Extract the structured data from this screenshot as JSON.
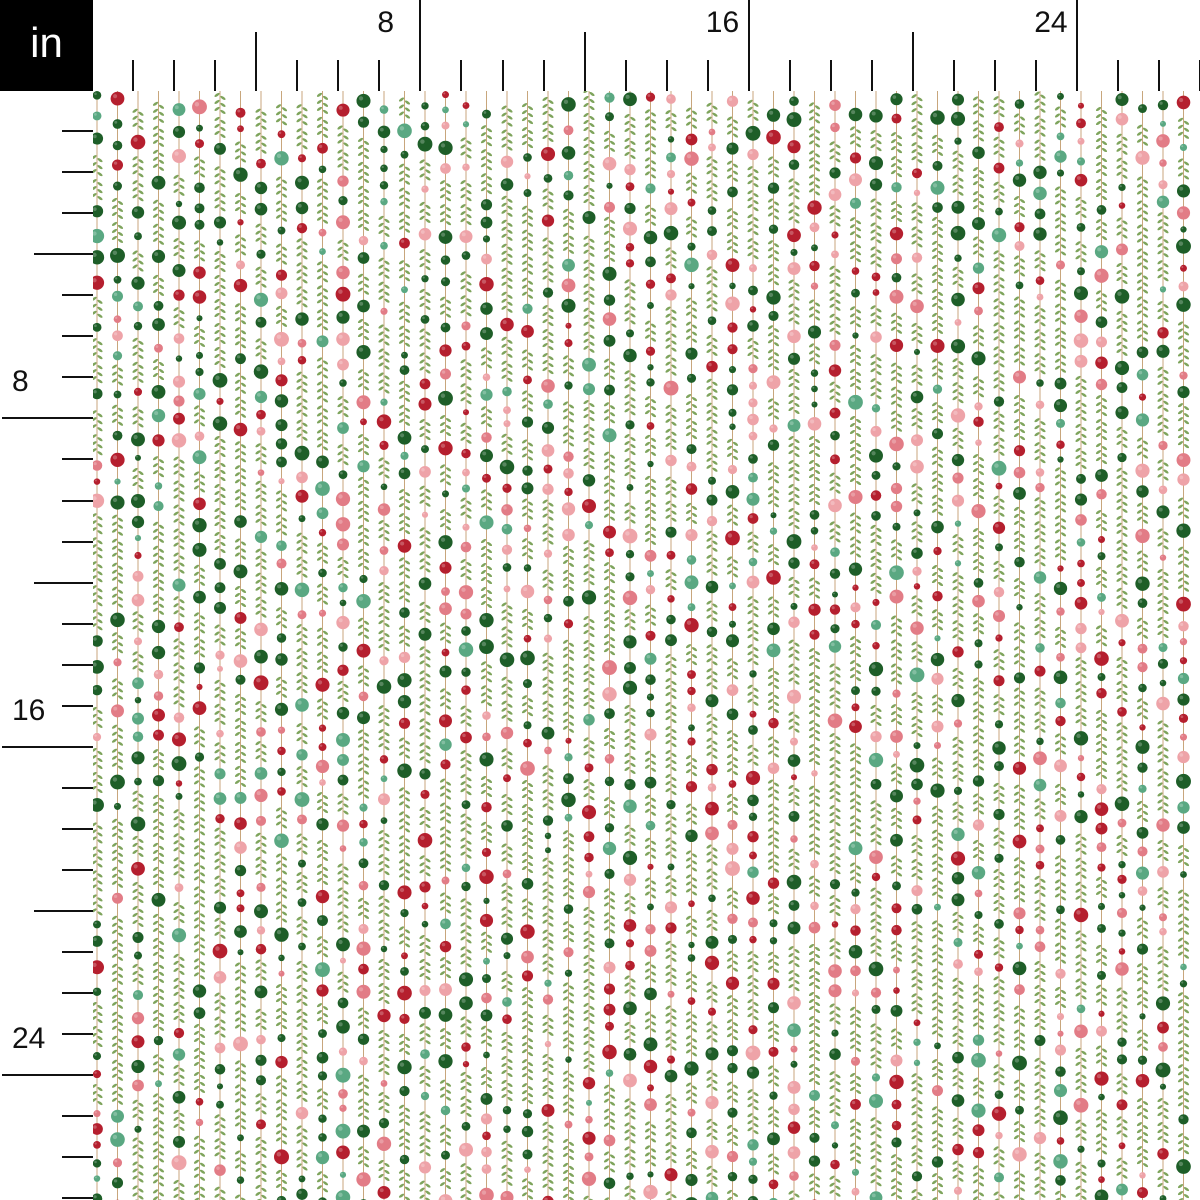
{
  "unit_label": "in",
  "ruler": {
    "top_labels": [
      "8",
      "16",
      "24"
    ],
    "left_labels": [
      "8",
      "16",
      "24"
    ],
    "major_every_in": 4,
    "labelled_every_in": 8
  },
  "pattern": {
    "description_colors": {
      "dark_green": "#1e5e28",
      "red": "#b51f2e",
      "pink": "#e27c86",
      "light_pink": "#eea3a8",
      "mint": "#5aa882",
      "stem": "#c8a67c",
      "leaf": "#7ea45c"
    }
  }
}
